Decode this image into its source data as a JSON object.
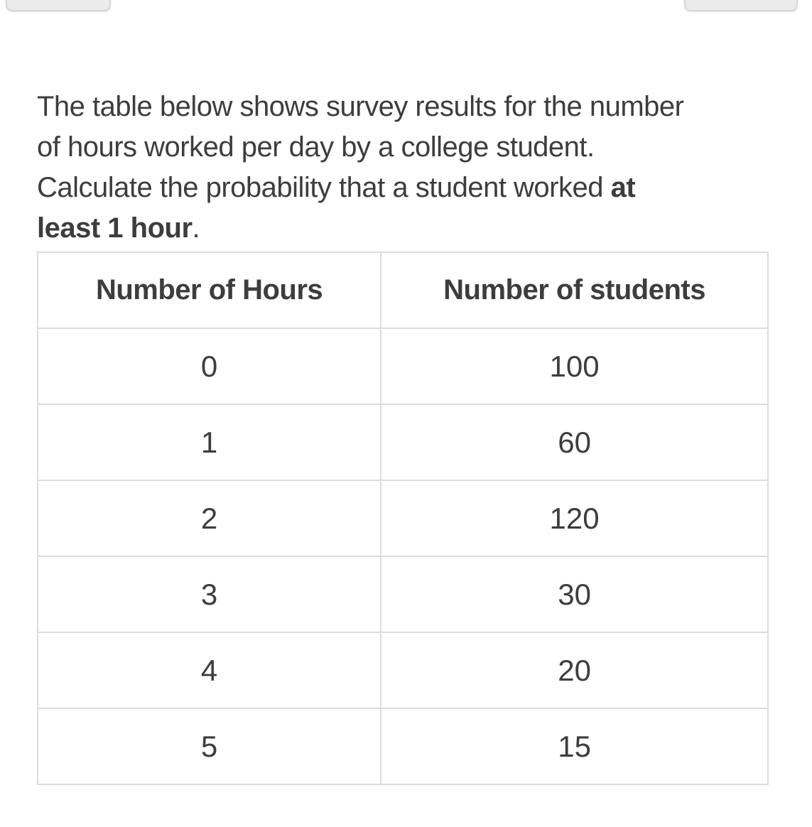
{
  "colors": {
    "background": "#ffffff",
    "text": "#3d3d3d",
    "table_border": "#dcdcdc",
    "button_fill": "#ebebeb",
    "button_border": "#d7d7d7"
  },
  "question": {
    "full_text": "The table below shows survey results for the number of hours worked per day by a college student. Calculate the probability that a student worked at least 1 hour.",
    "line1": "The table below shows survey results for the number",
    "line2": "of hours worked per day by a college student.",
    "line3_regular": "Calculate the probability that a student worked ",
    "line3_bold": "at",
    "line4_bold": "least 1 hour",
    "line4_period": "."
  },
  "table": {
    "headers": [
      "Number of Hours",
      "Number of students"
    ],
    "rows": [
      {
        "hours": "0",
        "students": "100"
      },
      {
        "hours": "1",
        "students": "60"
      },
      {
        "hours": "2",
        "students": "120"
      },
      {
        "hours": "3",
        "students": "30"
      },
      {
        "hours": "4",
        "students": "20"
      },
      {
        "hours": "5",
        "students": "15"
      }
    ]
  }
}
